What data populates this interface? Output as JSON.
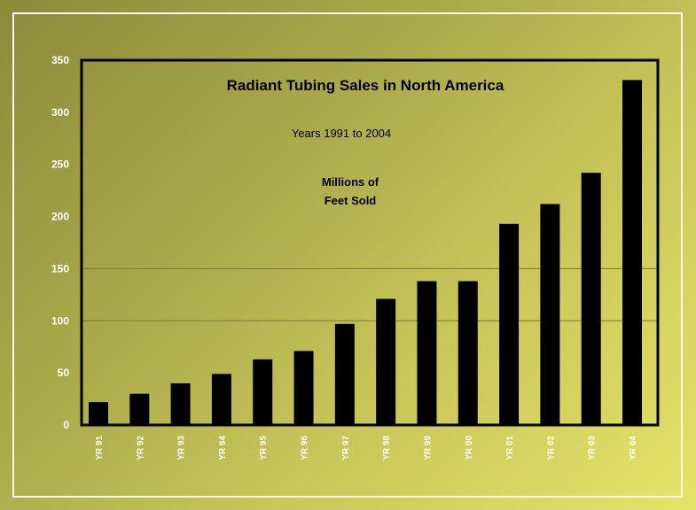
{
  "chart_data": {
    "type": "bar",
    "title": "Radiant Tubing Sales in North America",
    "subtitle": "Years 1991 to 2004",
    "unit_label": [
      "Millions of",
      "Feet Sold"
    ],
    "categories": [
      "YR 91",
      "YR 92",
      "YR 93",
      "YR 94",
      "YR 95",
      "YR 96",
      "YR 97",
      "YR 98",
      "YR 99",
      "YR 00",
      "YR 01",
      "YR 02",
      "YR 03",
      "YR 04"
    ],
    "values": [
      22,
      30,
      40,
      49,
      63,
      71,
      97,
      121,
      138,
      138,
      193,
      212,
      242,
      331
    ],
    "ylim": [
      0,
      350
    ],
    "yticks": [
      0,
      50,
      100,
      150,
      200,
      250,
      300,
      350
    ],
    "gridlines": [
      100,
      150
    ],
    "colors": {
      "bar": "#000000",
      "grid": "#7a7832",
      "tick_text": "#ffffff"
    }
  }
}
